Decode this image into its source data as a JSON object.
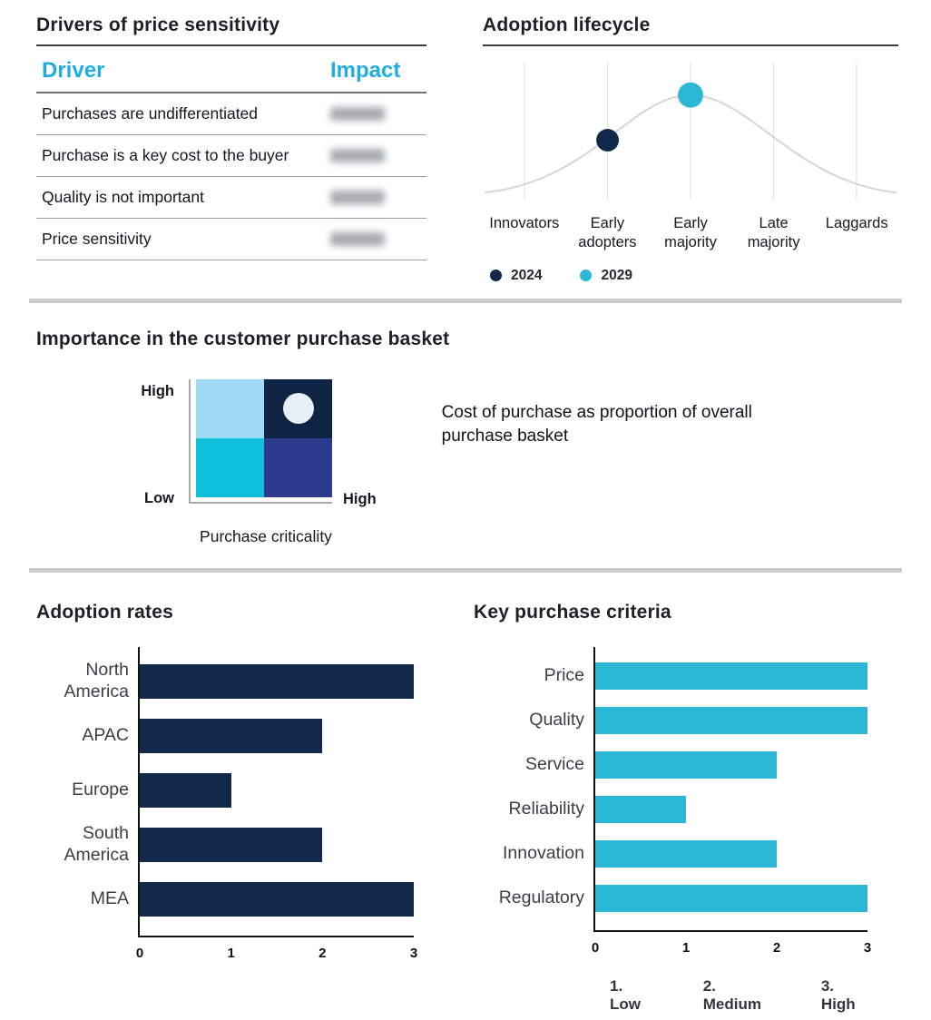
{
  "colors": {
    "navy": "#12294B",
    "cyan": "#2BB7D6",
    "table_header_cyan": "#1FAEE1",
    "curve_gray": "#D6D6D6",
    "divider_gray": "#C8CACC"
  },
  "drivers_panel": {
    "title": "Drivers of price sensitivity",
    "columns": {
      "driver": "Driver",
      "impact": "Impact"
    },
    "rows": [
      {
        "driver": "Purchases are undifferentiated",
        "impact_redacted": true
      },
      {
        "driver": "Purchase is a key cost to the buyer",
        "impact_redacted": true
      },
      {
        "driver": "Quality is not important",
        "impact_redacted": true
      },
      {
        "driver": "Price sensitivity",
        "impact_redacted": true
      }
    ]
  },
  "purchase_basket_panel": {
    "title": "Importance in the customer purchase basket",
    "y_top_label": "High",
    "y_bottom_label": "Low",
    "x_right_label": "High",
    "x_axis_title": "Purchase criticality",
    "annotation": "Cost of purchase as proportion of overall purchase basket",
    "quadrant_colors": {
      "top_left": "#9FDAF7",
      "top_right": "#0F2443",
      "bottom_left": "#0EC0DA",
      "bottom_right": "#2E3A8D"
    },
    "marker_quadrant": "top_right",
    "marker_color": "#E8EEF6"
  },
  "chart_data": [
    {
      "id": "adoption_lifecycle",
      "type": "line",
      "title": "Adoption lifecycle",
      "categories": [
        "Innovators",
        "Early adopters",
        "Early majority",
        "Late majority",
        "Laggards"
      ],
      "curve": "gray bell-shaped diffusion curve peaking at Early majority",
      "series": [
        {
          "name": "2024",
          "category": "Early adopters",
          "color": "#12294B"
        },
        {
          "name": "2029",
          "category": "Early majority",
          "color": "#2BB7D6"
        }
      ],
      "legend_position": "bottom",
      "grid": "vertical gridline per category"
    },
    {
      "id": "adoption_rates",
      "type": "bar",
      "orientation": "horizontal",
      "title": "Adoption rates",
      "categories": [
        "North America",
        "APAC",
        "Europe",
        "South America",
        "MEA"
      ],
      "values": [
        3,
        2,
        1,
        2,
        3
      ],
      "xlim": [
        0,
        3
      ],
      "xticks": [
        0,
        1,
        2,
        3
      ],
      "bar_color": "#12294B"
    },
    {
      "id": "key_purchase_criteria",
      "type": "bar",
      "orientation": "horizontal",
      "title": "Key purchase criteria",
      "categories": [
        "Price",
        "Quality",
        "Service",
        "Reliability",
        "Innovation",
        "Regulatory"
      ],
      "values": [
        3,
        3,
        2,
        1,
        2,
        3
      ],
      "xlim": [
        0,
        3
      ],
      "xticks": [
        0,
        1,
        2,
        3
      ],
      "bar_color": "#2BB7D6",
      "scale_legend": [
        "1. Low",
        "2. Medium",
        "3. High"
      ]
    }
  ]
}
